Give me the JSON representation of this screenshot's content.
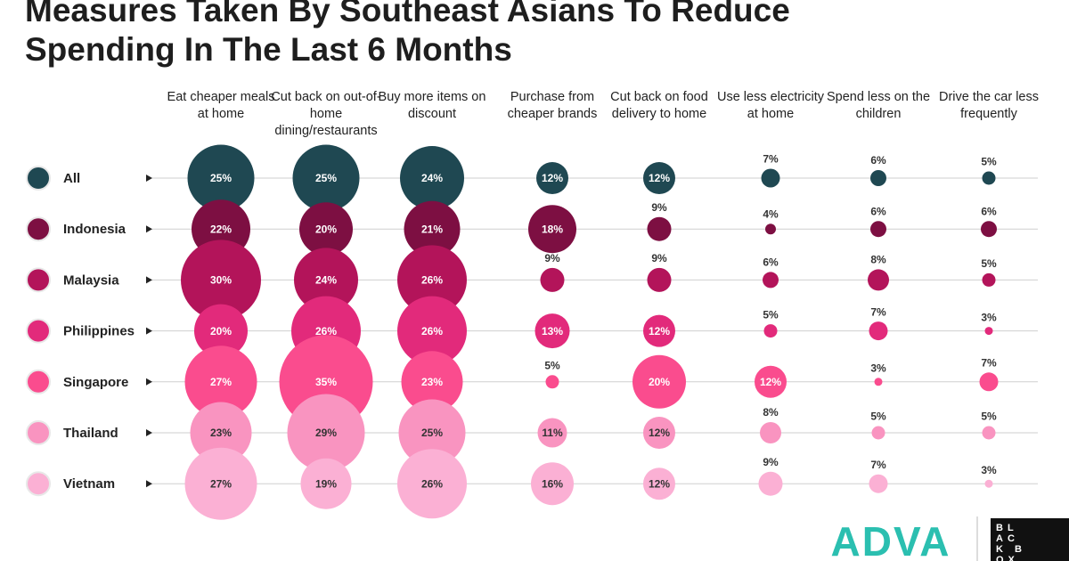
{
  "chart_data": {
    "type": "bubble-matrix",
    "title": "Measures Taken By Southeast Asians To Reduce Spending In The Last 6 Months",
    "categories": [
      "Eat cheaper meals at home",
      "Cut back on out-of-home dining/restaurants",
      "Buy more items on discount",
      "Purchase from cheaper brands",
      "Cut back on food delivery to home",
      "Use less electricity at home",
      "Spend less on the children",
      "Drive the car less frequently"
    ],
    "series": [
      {
        "name": "All",
        "color": "#1f4852",
        "text_color": "#ffffff",
        "values": [
          25,
          25,
          24,
          12,
          12,
          7,
          6,
          5
        ],
        "value_labels": [
          "25%",
          "25%",
          "24%",
          "12%",
          "12%",
          "7%",
          "6%",
          "5%"
        ]
      },
      {
        "name": "Indonesia",
        "color": "#7d0f42",
        "text_color": "#ffffff",
        "values": [
          22,
          20,
          21,
          18,
          9,
          4,
          6,
          6
        ],
        "value_labels": [
          "22%",
          "20%",
          "21%",
          "18%",
          "9%",
          "4%",
          "6%",
          "6%"
        ]
      },
      {
        "name": "Malaysia",
        "color": "#b3145a",
        "text_color": "#ffffff",
        "values": [
          30,
          24,
          26,
          9,
          9,
          6,
          8,
          5
        ],
        "value_labels": [
          "30%",
          "24%",
          "26%",
          "9%",
          "9%",
          "6%",
          "8%",
          "5%"
        ]
      },
      {
        "name": "Philippines",
        "color": "#e22a7b",
        "text_color": "#ffffff",
        "values": [
          20,
          26,
          26,
          13,
          12,
          5,
          7,
          3
        ],
        "value_labels": [
          "20%",
          "26%",
          "26%",
          "13%",
          "12%",
          "5%",
          "7%",
          "3%"
        ]
      },
      {
        "name": "Singapore",
        "color": "#fa4c8e",
        "text_color": "#ffffff",
        "values": [
          27,
          35,
          23,
          5,
          20,
          12,
          3,
          7
        ],
        "value_labels": [
          "27%",
          "35%",
          "23%",
          "5%",
          "20%",
          "12%",
          "3%",
          "7%"
        ]
      },
      {
        "name": "Thailand",
        "color": "#f994c0",
        "text_color": "#333333",
        "values": [
          23,
          29,
          25,
          11,
          12,
          8,
          5,
          5
        ],
        "value_labels": [
          "23%",
          "29%",
          "25%",
          "11%",
          "12%",
          "8%",
          "5%",
          "5%"
        ]
      },
      {
        "name": "Vietnam",
        "color": "#fbb0d4",
        "text_color": "#333333",
        "values": [
          27,
          19,
          26,
          16,
          12,
          9,
          7,
          3
        ],
        "value_labels": [
          "27%",
          "19%",
          "26%",
          "16%",
          "12%",
          "9%",
          "7%",
          "3%"
        ]
      }
    ],
    "brands": [
      "ADVA",
      "BLACK BOX"
    ]
  }
}
